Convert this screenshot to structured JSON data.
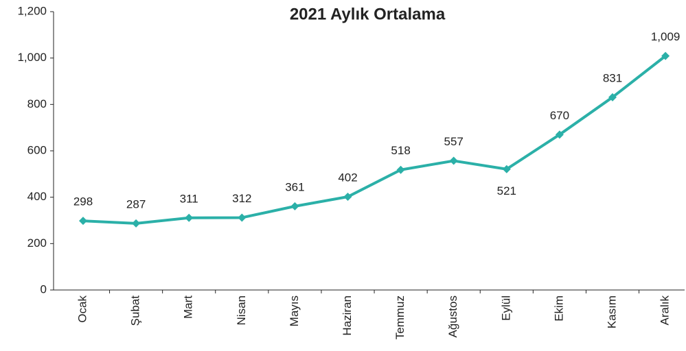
{
  "chart_data": {
    "type": "line",
    "title": "2021 Aylık Ortalama",
    "categories": [
      "Ocak",
      "Şubat",
      "Mart",
      "Nisan",
      "Mayıs",
      "Haziran",
      "Temmuz",
      "Ağustos",
      "Eylül",
      "Ekim",
      "Kasım",
      "Aralık"
    ],
    "series": [
      {
        "name": "2021",
        "color": "#2bb0a8",
        "values": [
          298,
          287,
          311,
          312,
          361,
          402,
          518,
          557,
          521,
          670,
          831,
          1009
        ],
        "value_labels": [
          "298",
          "287",
          "311",
          "312",
          "361",
          "402",
          "518",
          "557",
          "521",
          "670",
          "831",
          "1,009"
        ],
        "label_positions": [
          "above",
          "above",
          "above",
          "above",
          "above",
          "above",
          "above",
          "above",
          "below",
          "above",
          "above",
          "above"
        ]
      }
    ],
    "ylim": [
      0,
      1200
    ],
    "yticks": [
      0,
      200,
      400,
      600,
      800,
      {
        "value": 1000,
        "label": "1,000"
      },
      {
        "value": 1200,
        "label": "1,200"
      }
    ],
    "grid": false
  }
}
